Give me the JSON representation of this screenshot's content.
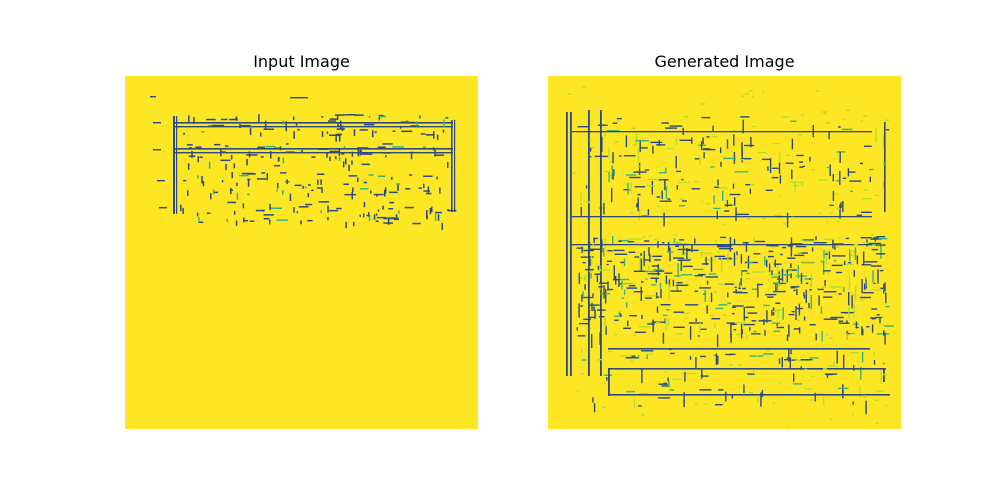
{
  "panels": [
    {
      "title": "Input Image"
    },
    {
      "title": "Generated Image"
    }
  ],
  "colors": {
    "background": "#fde725",
    "ink": "#2c4a7c",
    "mid": "#35b779",
    "light": "#b5de2b"
  }
}
